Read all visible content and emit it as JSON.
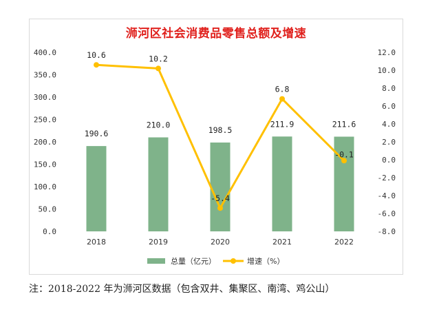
{
  "chart_data": {
    "type": "bar",
    "title": "浉河区社会消费品零售总额及增速",
    "categories": [
      "2018",
      "2019",
      "2020",
      "2021",
      "2022"
    ],
    "series": [
      {
        "name": "总量（亿元）",
        "type": "bar",
        "axis": "left",
        "color": "#7fb38a",
        "values": [
          190.6,
          210.0,
          198.5,
          211.9,
          211.6
        ],
        "labels": [
          "190.6",
          "210.0",
          "198.5",
          "211.9",
          "211.6"
        ]
      },
      {
        "name": "增速（%）",
        "type": "line",
        "axis": "right",
        "color": "#ffc000",
        "values": [
          10.6,
          10.2,
          -5.4,
          6.8,
          -0.1
        ],
        "labels": [
          "10.6",
          "10.2",
          "-5.4",
          "6.8",
          "-0.1"
        ]
      }
    ],
    "y_left": {
      "min": 0,
      "max": 400,
      "step": 50,
      "ticks": [
        "0.0",
        "50.0",
        "100.0",
        "150.0",
        "200.0",
        "250.0",
        "300.0",
        "350.0",
        "400.0"
      ]
    },
    "y_right": {
      "min": -8,
      "max": 12,
      "step": 2,
      "ticks": [
        "-8.0",
        "-6.0",
        "-4.0",
        "-2.0",
        "0.0",
        "2.0",
        "4.0",
        "6.0",
        "8.0",
        "10.0",
        "12.0"
      ]
    },
    "legend_position": "bottom",
    "grid": false
  },
  "note": "注：2018-2022 年为浉河区数据（包含双井、集聚区、南湾、鸡公山）"
}
